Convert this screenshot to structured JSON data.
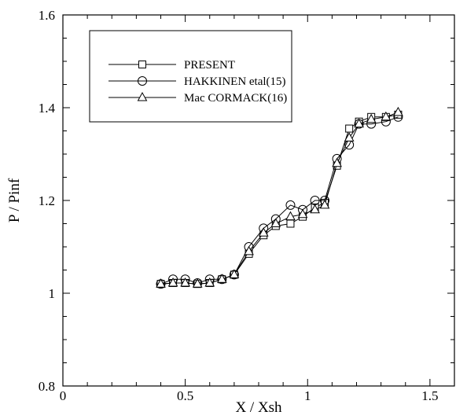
{
  "chart_data": {
    "type": "line",
    "title": "",
    "xlabel": "X / Xsh",
    "ylabel": "P / Pinf",
    "xlim": [
      0,
      1.6
    ],
    "ylim": [
      0.8,
      1.6
    ],
    "xticks": [
      0,
      0.5,
      1,
      1.5
    ],
    "yticks": [
      0.8,
      1,
      1.2,
      1.4,
      1.6
    ],
    "x_tick_labels": [
      "0",
      "0.5",
      "1",
      "1.5"
    ],
    "y_tick_labels": [
      "0.8",
      "1",
      "1.2",
      "1.4",
      "1.6"
    ],
    "grid": false,
    "legend_position": "top-left",
    "series": [
      {
        "name": "PRESENT",
        "marker": "square",
        "points": [
          [
            0.4,
            1.02
          ],
          [
            0.45,
            1.022
          ],
          [
            0.5,
            1.022
          ],
          [
            0.55,
            1.02
          ],
          [
            0.6,
            1.022
          ],
          [
            0.65,
            1.03
          ],
          [
            0.7,
            1.04
          ],
          [
            0.76,
            1.085
          ],
          [
            0.82,
            1.125
          ],
          [
            0.87,
            1.145
          ],
          [
            0.93,
            1.15
          ],
          [
            0.98,
            1.165
          ],
          [
            1.03,
            1.185
          ],
          [
            1.07,
            1.195
          ],
          [
            1.12,
            1.275
          ],
          [
            1.17,
            1.355
          ],
          [
            1.21,
            1.37
          ],
          [
            1.26,
            1.38
          ],
          [
            1.32,
            1.38
          ],
          [
            1.37,
            1.385
          ]
        ]
      },
      {
        "name": "HAKKINEN etal(15)",
        "marker": "circle",
        "points": [
          [
            0.4,
            1.02
          ],
          [
            0.45,
            1.03
          ],
          [
            0.5,
            1.03
          ],
          [
            0.55,
            1.022
          ],
          [
            0.6,
            1.03
          ],
          [
            0.65,
            1.03
          ],
          [
            0.7,
            1.04
          ],
          [
            0.76,
            1.1
          ],
          [
            0.82,
            1.14
          ],
          [
            0.87,
            1.16
          ],
          [
            0.93,
            1.19
          ],
          [
            0.98,
            1.18
          ],
          [
            1.03,
            1.2
          ],
          [
            1.07,
            1.2
          ],
          [
            1.12,
            1.29
          ],
          [
            1.17,
            1.32
          ],
          [
            1.21,
            1.365
          ],
          [
            1.26,
            1.365
          ],
          [
            1.32,
            1.37
          ],
          [
            1.37,
            1.38
          ]
        ]
      },
      {
        "name": "Mac CORMACK(16)",
        "marker": "triangle",
        "points": [
          [
            0.4,
            1.02
          ],
          [
            0.45,
            1.022
          ],
          [
            0.5,
            1.022
          ],
          [
            0.55,
            1.02
          ],
          [
            0.6,
            1.022
          ],
          [
            0.65,
            1.03
          ],
          [
            0.7,
            1.04
          ],
          [
            0.76,
            1.09
          ],
          [
            0.82,
            1.13
          ],
          [
            0.87,
            1.15
          ],
          [
            0.93,
            1.165
          ],
          [
            0.98,
            1.17
          ],
          [
            1.03,
            1.18
          ],
          [
            1.07,
            1.19
          ],
          [
            1.12,
            1.28
          ],
          [
            1.17,
            1.335
          ],
          [
            1.21,
            1.365
          ],
          [
            1.26,
            1.375
          ],
          [
            1.32,
            1.38
          ],
          [
            1.37,
            1.39
          ]
        ]
      }
    ]
  }
}
